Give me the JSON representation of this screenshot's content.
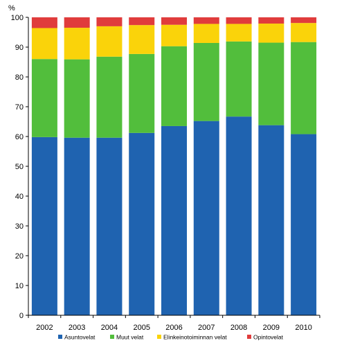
{
  "chart_data": {
    "type": "bar",
    "stacked": true,
    "y_unit": "%",
    "ylim": [
      0,
      100
    ],
    "yticks": [
      0,
      10,
      20,
      30,
      40,
      50,
      60,
      70,
      80,
      90,
      100
    ],
    "categories": [
      "2002",
      "2003",
      "2004",
      "2005",
      "2006",
      "2007",
      "2008",
      "2009",
      "2010"
    ],
    "series": [
      {
        "name": "Asuntovelat",
        "color": "#1F63B0",
        "values": [
          59.8,
          59.6,
          59.6,
          61.2,
          63.5,
          65.2,
          66.7,
          63.8,
          60.8
        ]
      },
      {
        "name": "Muut velat",
        "color": "#52BE3C",
        "values": [
          26.2,
          26.3,
          27.2,
          26.5,
          26.8,
          26.2,
          25.2,
          27.7,
          30.9
        ]
      },
      {
        "name": "Elinkeinotoiminnan velat",
        "color": "#FAD30A",
        "values": [
          10.4,
          10.6,
          10.2,
          9.7,
          7.2,
          6.4,
          5.9,
          6.4,
          6.4
        ]
      },
      {
        "name": "Opintovelat",
        "color": "#E03C3C",
        "values": [
          3.6,
          3.5,
          3.0,
          2.6,
          2.5,
          2.2,
          2.2,
          2.1,
          1.9
        ]
      }
    ],
    "grid": false,
    "legend_position": "bottom"
  }
}
